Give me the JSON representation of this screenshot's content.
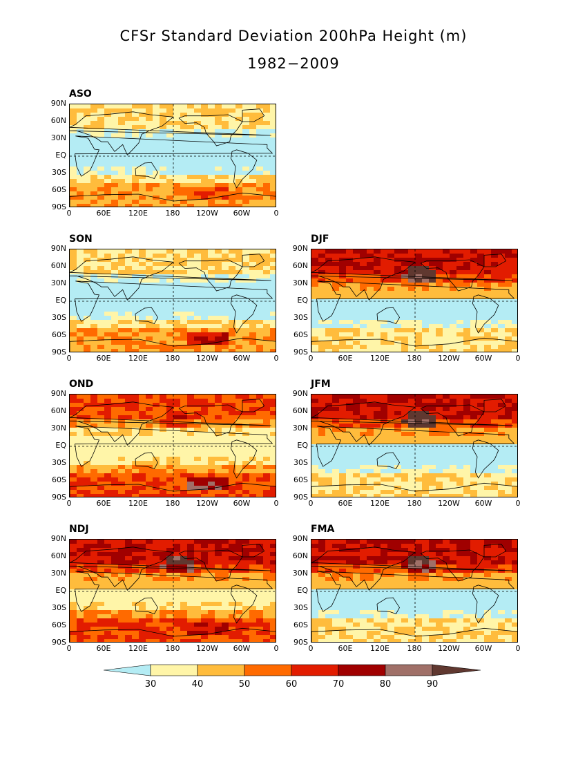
{
  "title_line1": "CFSr Standard Deviation 200hPa Height (m)",
  "title_line2": "1982-2009",
  "y_ticks": [
    "90N",
    "60N",
    "30N",
    "EQ",
    "30S",
    "60S",
    "90S"
  ],
  "x_ticks": [
    "0",
    "60E",
    "120E",
    "180",
    "120W",
    "60W",
    "0"
  ],
  "panels": [
    {
      "label": "ASO",
      "col": 0,
      "row": 0
    },
    {
      "label": "SON",
      "col": 0,
      "row": 1
    },
    {
      "label": "DJF",
      "col": 1,
      "row": 1
    },
    {
      "label": "OND",
      "col": 0,
      "row": 2
    },
    {
      "label": "JFM",
      "col": 1,
      "row": 2
    },
    {
      "label": "NDJ",
      "col": 0,
      "row": 3
    },
    {
      "label": "FMA",
      "col": 1,
      "row": 3
    }
  ],
  "colorbar": {
    "levels": [
      "30",
      "40",
      "50",
      "60",
      "70",
      "80",
      "90"
    ],
    "colors": [
      "#b4ecf4",
      "#fff5a8",
      "#ffbc3c",
      "#ff6a00",
      "#e21c00",
      "#a00000",
      "#a07068",
      "#603830"
    ]
  },
  "palette_note_colors": {
    "land_outline": "#000000",
    "grid_dash": "#000000"
  }
}
